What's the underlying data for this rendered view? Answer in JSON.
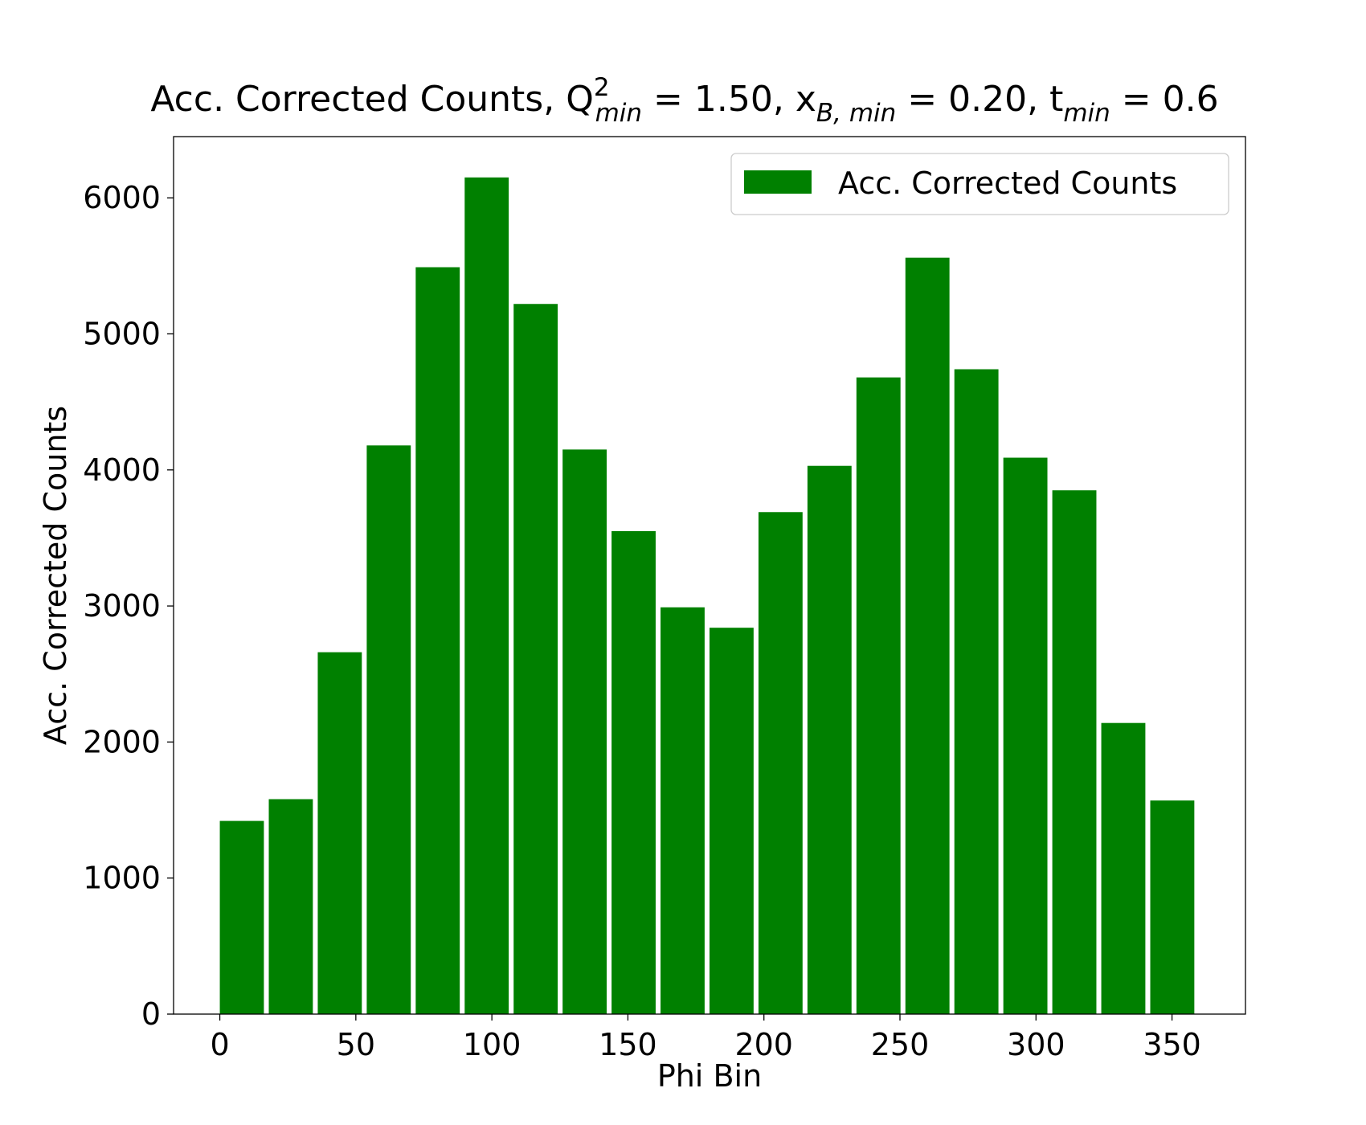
{
  "chart_data": {
    "type": "bar",
    "title": {
      "part1": "Acc. Corrected Counts, Q",
      "q_sup": "2",
      "q_sub": "min",
      "part2": " = 1.50, x",
      "x_sub": "B, min",
      "part3": " = 0.20, t",
      "t_sub": "min",
      "part4": " = 0.6"
    },
    "xlabel": "Phi Bin",
    "ylabel": "Acc. Corrected Counts",
    "x": [
      0,
      18,
      36,
      54,
      72,
      90,
      108,
      126,
      144,
      162,
      180,
      198,
      216,
      234,
      252,
      270,
      288,
      306,
      324,
      342
    ],
    "bin_width": 16.2,
    "values": [
      1420,
      1580,
      2660,
      4180,
      5490,
      6150,
      5220,
      4150,
      3550,
      2990,
      2840,
      3690,
      4030,
      4680,
      5560,
      4740,
      4090,
      3850,
      2140,
      1570
    ],
    "xlim": [
      -17,
      377
    ],
    "ylim": [
      0,
      6450
    ],
    "xticks": [
      0,
      50,
      100,
      150,
      200,
      250,
      300,
      350
    ],
    "yticks": [
      0,
      1000,
      2000,
      3000,
      4000,
      5000,
      6000
    ],
    "bar_color": "#008000",
    "legend": {
      "label": "Acc. Corrected Counts",
      "placement": "upper-right"
    },
    "grid": false
  }
}
